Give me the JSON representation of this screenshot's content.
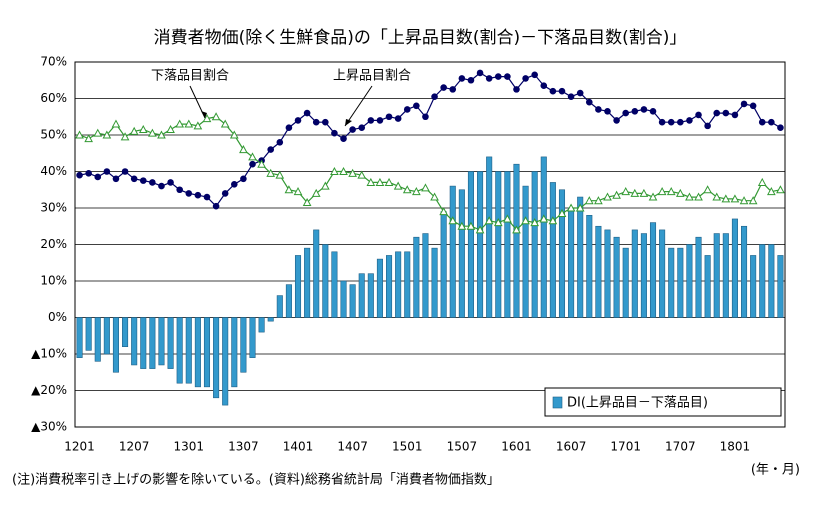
{
  "chart_data": {
    "type": "bar",
    "title": "消費者物価(除く生鮮食品)の「上昇品目数(割合)－下落品目数(割合)」",
    "note": "(注)消費税率引き上げの影響を除いている。(資料)総務省統計局「消費者物価指数」",
    "xlabel": "(年・月)",
    "annotations": [
      "下落品目割合",
      "上昇品目割合"
    ],
    "categories": [
      "1201",
      null,
      null,
      null,
      null,
      null,
      "1207",
      null,
      null,
      null,
      null,
      null,
      "1301",
      null,
      null,
      null,
      null,
      null,
      "1307",
      null,
      null,
      null,
      null,
      null,
      "1401",
      null,
      null,
      null,
      null,
      null,
      "1407",
      null,
      null,
      null,
      null,
      null,
      "1501",
      null,
      null,
      null,
      null,
      null,
      "1507",
      null,
      null,
      null,
      null,
      null,
      "1601",
      null,
      null,
      null,
      null,
      null,
      "1607",
      null,
      null,
      null,
      null,
      null,
      "1701",
      null,
      null,
      null,
      null,
      null,
      "1707",
      null,
      null,
      null,
      null,
      null,
      "1801",
      null,
      null,
      null,
      null,
      null
    ],
    "series": [
      {
        "name": "DI(上昇品目－下落品目)",
        "type": "bar",
        "color": "#3399cc",
        "values": [
          -11,
          -9,
          -12,
          -10,
          -15,
          -8,
          -13,
          -14,
          -14,
          -13,
          -14,
          -18,
          -18,
          -19,
          -19,
          -22,
          -24,
          -19,
          -15,
          -11,
          -4,
          -1,
          6,
          9,
          17,
          19,
          24,
          20,
          18,
          10,
          9,
          12,
          12,
          16,
          17,
          18,
          18,
          22,
          23,
          19,
          29,
          36,
          35,
          40,
          40,
          44,
          40,
          40,
          42,
          36,
          40,
          44,
          37,
          35,
          30,
          33,
          28,
          25,
          24,
          22,
          19,
          24,
          23,
          26,
          24,
          19,
          19,
          20,
          22,
          17,
          23,
          23,
          27,
          25,
          17,
          20,
          20,
          17
        ]
      },
      {
        "name": "上昇品目割合",
        "type": "line",
        "marker": "circle",
        "color": "#000066",
        "values": [
          39,
          39.5,
          38.5,
          40,
          38,
          40,
          38,
          37.5,
          37,
          36,
          37,
          35,
          34,
          33.5,
          33,
          30.5,
          34,
          36.5,
          38,
          42,
          43,
          46,
          48,
          52,
          54,
          56,
          53.5,
          53.5,
          50.5,
          49,
          51.5,
          52,
          54,
          54,
          55,
          54.5,
          57,
          58,
          55,
          60.5,
          63,
          62.5,
          65.5,
          65,
          67,
          65.5,
          66,
          66,
          62.5,
          65.5,
          66.5,
          63.5,
          62,
          62,
          60.5,
          61.5,
          59,
          57,
          56.5,
          54,
          56,
          56.5,
          57,
          56.5,
          53.5,
          53.5,
          53.5,
          54,
          55.5,
          52.5,
          56,
          56,
          55.5,
          58.5,
          58,
          53.5,
          53.5,
          52
        ]
      },
      {
        "name": "下落品目割合",
        "type": "line",
        "marker": "triangle",
        "color": "#339933",
        "values": [
          50,
          49,
          50.5,
          50,
          53,
          49.5,
          51,
          51.5,
          50.5,
          50,
          51.5,
          53,
          53,
          52.5,
          54.5,
          55,
          53,
          50,
          46,
          44,
          42,
          39.5,
          39,
          35,
          34.5,
          31.5,
          34,
          36,
          40,
          40,
          39.5,
          39,
          37,
          37,
          37,
          36,
          35,
          34.5,
          35.5,
          33,
          29,
          26.5,
          25,
          25,
          24,
          26.5,
          26,
          27,
          24,
          26.5,
          26,
          27,
          26.5,
          28.5,
          30,
          30,
          32,
          32,
          33,
          33.5,
          34.5,
          34,
          34,
          33,
          34.5,
          34.5,
          34,
          33,
          33,
          35,
          33,
          32.5,
          32.5,
          32,
          32,
          37,
          34.5,
          35
        ]
      }
    ],
    "legend_series": [
      0
    ],
    "ylim": [
      -30,
      70
    ],
    "yticks": [
      {
        "value": -30,
        "label": "▲30%"
      },
      {
        "value": -20,
        "label": "▲20%"
      },
      {
        "value": -10,
        "label": "▲10%"
      },
      {
        "value": 0,
        "label": "0%"
      },
      {
        "value": 10,
        "label": "10%"
      },
      {
        "value": 20,
        "label": "20%"
      },
      {
        "value": 30,
        "label": "30%"
      },
      {
        "value": 40,
        "label": "40%"
      },
      {
        "value": 50,
        "label": "50%"
      },
      {
        "value": 60,
        "label": "60%"
      },
      {
        "value": 70,
        "label": "70%"
      }
    ],
    "grid": true
  }
}
